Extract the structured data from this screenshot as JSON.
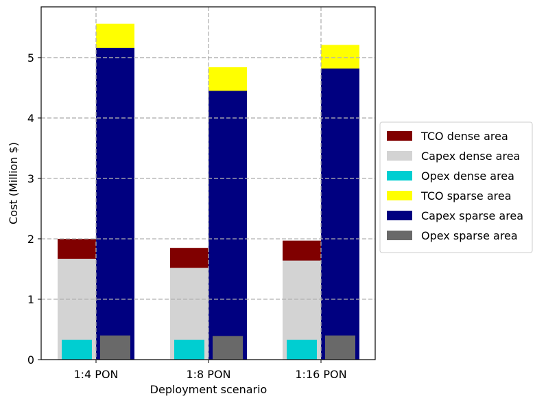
{
  "chart_data": {
    "type": "bar",
    "xlabel": "Deployment scenario",
    "ylabel": "Cost (Million $)",
    "ylim": [
      0,
      5.84
    ],
    "yticks": [
      0,
      1,
      2,
      3,
      4,
      5
    ],
    "grid": true,
    "legend_position": "right",
    "categories": [
      "1:4 PON",
      "1:8 PON",
      "1:16 PON"
    ],
    "series": [
      {
        "name": "TCO dense area",
        "group": "dense",
        "color": "#800000",
        "values": [
          2.0,
          1.85,
          1.97
        ]
      },
      {
        "name": "Capex dense area",
        "group": "dense",
        "color": "#d3d3d3",
        "values": [
          1.67,
          1.52,
          1.64
        ]
      },
      {
        "name": "Opex dense area",
        "group": "dense",
        "color": "#00ced1",
        "values": [
          0.33,
          0.33,
          0.33
        ]
      },
      {
        "name": "TCO sparse area",
        "group": "sparse",
        "color": "#ffff00",
        "values": [
          5.56,
          4.84,
          5.21
        ]
      },
      {
        "name": "Capex sparse area",
        "group": "sparse",
        "color": "#000080",
        "values": [
          5.16,
          4.45,
          4.82
        ]
      },
      {
        "name": "Opex sparse area",
        "group": "sparse",
        "color": "#696969",
        "values": [
          0.4,
          0.39,
          0.4
        ]
      }
    ]
  }
}
